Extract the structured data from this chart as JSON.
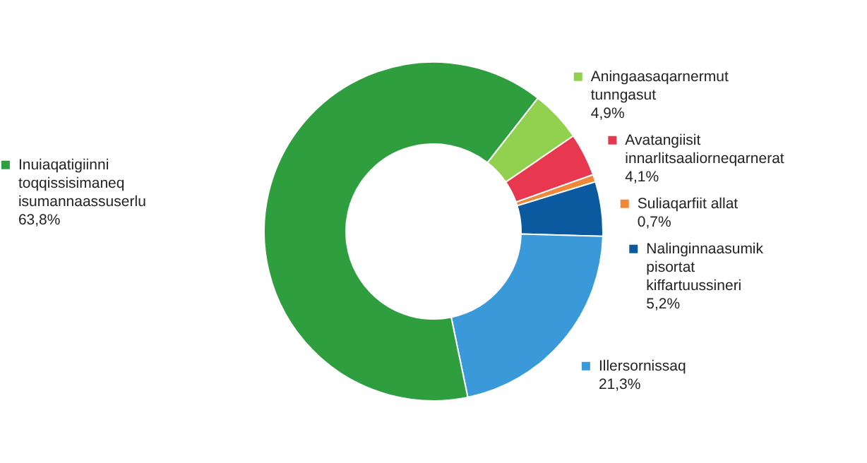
{
  "chart_data": {
    "type": "donut",
    "categories": [
      "Aningaasaqarnermut tunngasut",
      "Avatangiisit innarlitsaaliorneqarnerat",
      "Suliaqarfiit allat",
      "Nalinginnaasumik pisortat kiffartuussineri",
      "Illersornissaq",
      "Inuiaqatigiinni toqqissisimaneq isumannaassuserlu"
    ],
    "values": [
      4.9,
      4.1,
      0.7,
      5.2,
      21.3,
      63.8
    ],
    "value_labels": [
      "4,9%",
      "4,1%",
      "0,7%",
      "5,2%",
      "21,3%",
      "63,8%"
    ],
    "colors": [
      "#92d050",
      "#e8384f",
      "#f0883a",
      "#0b5aa0",
      "#3a9ad9",
      "#2e9e3e"
    ],
    "legend": "top left"
  }
}
